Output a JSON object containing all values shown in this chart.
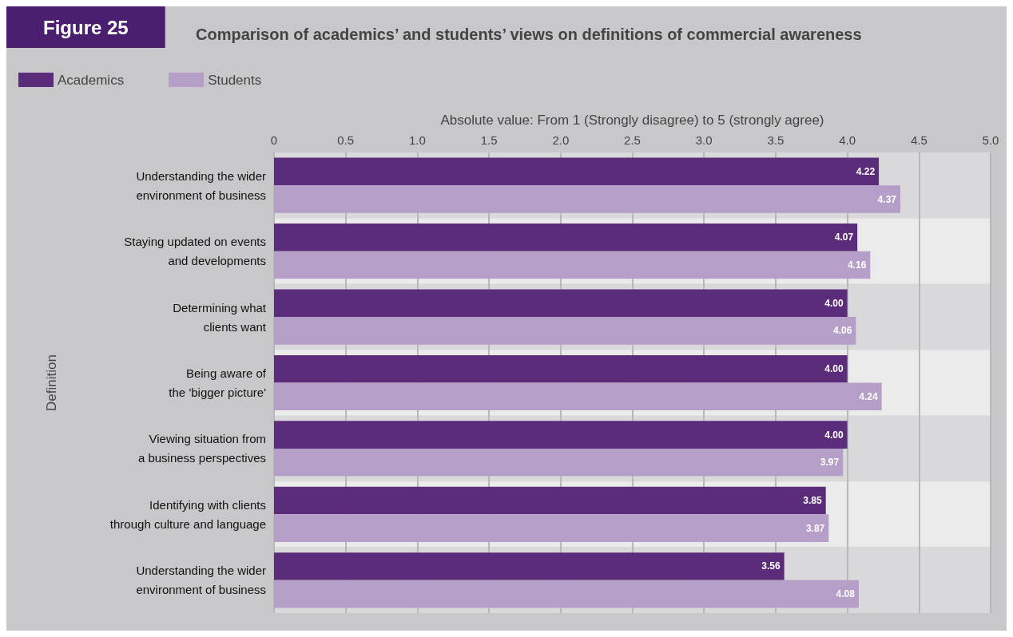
{
  "chart_data": {
    "type": "bar",
    "orientation": "horizontal",
    "title": "Figure 25",
    "subtitle": "Comparison of academics’ and students’ views on definitions of commercial awareness",
    "xlabel": "Absolute value: From 1 (Strongly disagree) to 5 (strongly agree)",
    "ylabel": "Definition",
    "categories": [
      "Understanding the wider\nenvironment of business",
      "Staying updated on events\nand developments",
      "Determining what\nclients want",
      "Being aware of\nthe 'bigger picture'",
      "Viewing situation from\na business perspectives",
      "Identifying with clients\nthrough culture and language",
      "Understanding the wider\nenvironment of business"
    ],
    "series": [
      {
        "name": "Academics",
        "color": "#5b2c7a",
        "values": [
          4.22,
          4.07,
          4.0,
          4.0,
          4.0,
          3.85,
          3.56
        ],
        "value_labels": [
          "4.22",
          "4.07",
          "4.00",
          "4.00",
          "4.00",
          "3.85",
          "3.56"
        ]
      },
      {
        "name": "Students",
        "color": "#b59fc8",
        "values": [
          4.37,
          4.16,
          4.06,
          4.24,
          3.97,
          3.87,
          4.08
        ],
        "value_labels": [
          "4.37",
          "4.16",
          "4.06",
          "4.24",
          "3.97",
          "3.87",
          "4.08"
        ]
      }
    ],
    "xlim": [
      0,
      5
    ],
    "xticks": [
      0,
      0.5,
      {
        "value": 1,
        "label": "1.0"
      },
      1.5,
      {
        "value": 2,
        "label": "2.0"
      },
      2.5,
      {
        "value": 3,
        "label": "3.0"
      },
      3.5,
      {
        "value": 4,
        "label": "4.0"
      },
      4.5,
      {
        "value": 5,
        "label": "5.0"
      }
    ],
    "grid": "x",
    "legend": "top left"
  }
}
